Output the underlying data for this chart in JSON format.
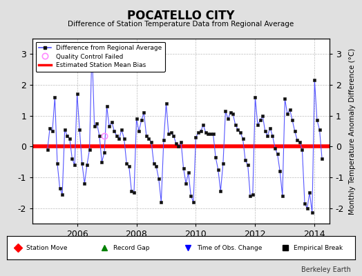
{
  "title": "POCATELLO CITY",
  "subtitle": "Difference of Station Temperature Data from Regional Average",
  "ylabel": "Monthly Temperature Anomaly Difference (°C)",
  "bias": 0.0,
  "ylim": [
    -2.5,
    3.5
  ],
  "xlim": [
    2004.5,
    2014.5
  ],
  "xticks": [
    2006,
    2008,
    2010,
    2012,
    2014
  ],
  "yticks": [
    -2,
    -1,
    0,
    1,
    2,
    3
  ],
  "background_color": "#e0e0e0",
  "plot_bg_color": "#ffffff",
  "grid_color": "#bbbbbb",
  "line_color": "#5555ff",
  "marker_color": "#111111",
  "bias_color": "#ff0000",
  "qc_marker_color": "#ff88ff",
  "watermark": "Berkeley Earth",
  "data_x": [
    2005.0,
    2005.083,
    2005.167,
    2005.25,
    2005.333,
    2005.417,
    2005.5,
    2005.583,
    2005.667,
    2005.75,
    2005.833,
    2005.917,
    2006.0,
    2006.083,
    2006.167,
    2006.25,
    2006.333,
    2006.417,
    2006.5,
    2006.583,
    2006.667,
    2006.75,
    2006.833,
    2006.917,
    2007.0,
    2007.083,
    2007.167,
    2007.25,
    2007.333,
    2007.417,
    2007.5,
    2007.583,
    2007.667,
    2007.75,
    2007.833,
    2007.917,
    2008.0,
    2008.083,
    2008.167,
    2008.25,
    2008.333,
    2008.417,
    2008.5,
    2008.583,
    2008.667,
    2008.75,
    2008.833,
    2008.917,
    2009.0,
    2009.083,
    2009.167,
    2009.25,
    2009.333,
    2009.417,
    2009.5,
    2009.583,
    2009.667,
    2009.75,
    2009.833,
    2009.917,
    2010.0,
    2010.083,
    2010.167,
    2010.25,
    2010.333,
    2010.417,
    2010.5,
    2010.583,
    2010.667,
    2010.75,
    2010.833,
    2010.917,
    2011.0,
    2011.083,
    2011.167,
    2011.25,
    2011.333,
    2011.417,
    2011.5,
    2011.583,
    2011.667,
    2011.75,
    2011.833,
    2011.917,
    2012.0,
    2012.083,
    2012.167,
    2012.25,
    2012.333,
    2012.417,
    2012.5,
    2012.583,
    2012.667,
    2012.75,
    2012.833,
    2012.917,
    2013.0,
    2013.083,
    2013.167,
    2013.25,
    2013.333,
    2013.417,
    2013.5,
    2013.583,
    2013.667,
    2013.75,
    2013.833,
    2013.917,
    2014.0,
    2014.083,
    2014.167,
    2014.25
  ],
  "data_y": [
    -0.1,
    0.6,
    0.5,
    1.6,
    -0.55,
    -1.35,
    -1.55,
    0.55,
    0.35,
    0.25,
    -0.4,
    -0.6,
    1.7,
    0.55,
    -0.55,
    -1.2,
    -0.6,
    -0.1,
    3.2,
    0.65,
    0.75,
    0.35,
    -0.5,
    -0.2,
    1.3,
    0.65,
    0.8,
    0.5,
    0.35,
    0.25,
    0.55,
    0.25,
    -0.55,
    -0.65,
    -1.45,
    -1.5,
    0.9,
    0.5,
    0.85,
    1.1,
    0.35,
    0.25,
    0.15,
    -0.55,
    -0.65,
    -1.05,
    -1.8,
    0.2,
    1.4,
    0.4,
    0.45,
    0.35,
    0.1,
    0.0,
    0.15,
    -0.7,
    -1.2,
    -0.85,
    -1.6,
    -1.8,
    0.3,
    0.45,
    0.5,
    0.7,
    0.45,
    0.4,
    0.4,
    0.4,
    -0.35,
    -0.75,
    -1.45,
    -0.55,
    1.15,
    0.9,
    1.1,
    1.05,
    0.7,
    0.55,
    0.45,
    0.25,
    -0.45,
    -0.6,
    -1.6,
    -1.55,
    1.6,
    0.7,
    0.85,
    1.0,
    0.5,
    0.35,
    0.6,
    0.35,
    -0.05,
    -0.25,
    -0.8,
    -1.6,
    1.55,
    1.05,
    1.2,
    0.85,
    0.5,
    0.2,
    0.15,
    -0.1,
    -1.85,
    -2.0,
    -1.5,
    -2.15,
    2.15,
    0.85,
    0.55,
    -0.4
  ],
  "qc_failed_x": [
    2006.917
  ],
  "qc_failed_y": [
    0.35
  ]
}
